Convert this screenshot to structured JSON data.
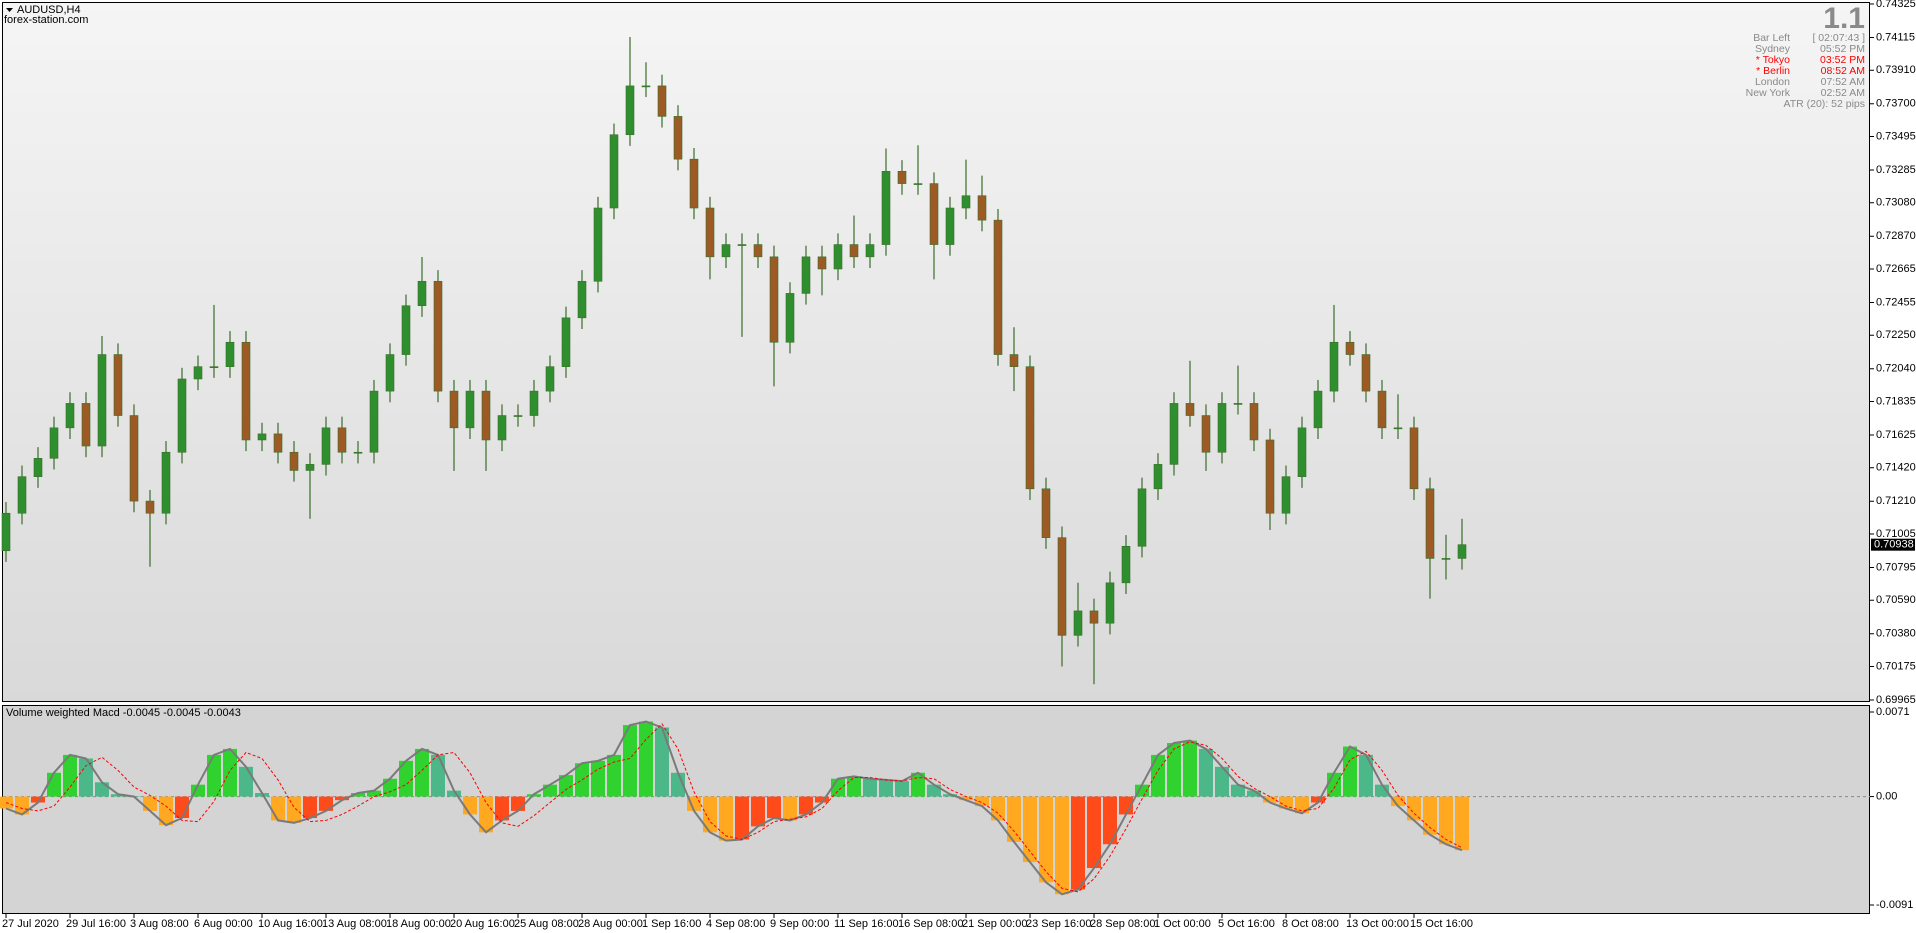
{
  "chart_data": [
    {
      "type": "candlestick",
      "title": "AUDUSD,H4",
      "subtitle": "forex-station.com",
      "categories": [
        "27 Jul 2020",
        null,
        null,
        null,
        "29 Jul 16:00",
        null,
        null,
        null,
        "3 Aug 08:00",
        null,
        null,
        null,
        "6 Aug 00:00",
        null,
        null,
        null,
        "10 Aug 16:00",
        null,
        null,
        null,
        "13 Aug 08:00",
        null,
        null,
        null,
        "18 Aug 00:00",
        null,
        null,
        null,
        "20 Aug 16:00",
        null,
        null,
        null,
        "25 Aug 08:00",
        null,
        null,
        null,
        "28 Aug 00:00",
        null,
        null,
        null,
        "1 Sep 16:00",
        null,
        null,
        null,
        "4 Sep 08:00",
        null,
        null,
        null,
        "9 Sep 00:00",
        null,
        null,
        null,
        "11 Sep 16:00",
        null,
        null,
        null,
        "16 Sep 08:00",
        null,
        null,
        null,
        "21 Sep 00:00",
        null,
        null,
        null,
        "23 Sep 16:00",
        null,
        null,
        null,
        "28 Sep 08:00",
        null,
        null,
        null,
        "1 Oct 00:00",
        null,
        null,
        null,
        "5 Oct 16:00",
        null,
        null,
        null,
        "8 Oct 08:00",
        null,
        null,
        null,
        "13 Oct 00:00",
        null,
        null,
        null,
        "15 Oct 16:00",
        null,
        null,
        null
      ],
      "open": [
        0.709,
        0.71135,
        0.71364,
        0.71479,
        0.7167,
        0.71823,
        0.71556,
        0.72129,
        0.71747,
        0.71211,
        0.71135,
        0.71517,
        0.71976,
        0.72053,
        0.72053,
        0.72206,
        0.71594,
        0.71632,
        0.71517,
        0.71403,
        0.71441,
        0.7167,
        0.71517,
        0.71517,
        0.719,
        0.72129,
        0.72435,
        0.72588,
        0.719,
        0.7167,
        0.719,
        0.71594,
        0.71747,
        0.71747,
        0.719,
        0.72053,
        0.72359,
        0.72588,
        0.73047,
        0.73506,
        0.73812,
        0.73812,
        0.73621,
        0.73353,
        0.73047,
        0.72741,
        0.72818,
        0.72818,
        0.72741,
        0.72206,
        0.72512,
        0.72741,
        0.72665,
        0.72818,
        0.72741,
        0.72818,
        0.73277,
        0.732,
        0.732,
        0.72818,
        0.73047,
        0.73124,
        0.72971,
        0.72129,
        0.72053,
        0.71288,
        0.70982,
        0.7037,
        0.70523,
        0.70446,
        0.70699,
        0.70928,
        0.71288,
        0.71441,
        0.71823,
        0.71747,
        0.71517,
        0.71823,
        0.71823,
        0.71594,
        0.71135,
        0.71364,
        0.7167,
        0.719,
        0.72206,
        0.72129,
        0.719,
        0.7167,
        0.7167,
        0.71288,
        0.70852,
        0.70852
      ],
      "high": [
        0.71205,
        0.71434,
        0.71549,
        0.7174,
        0.71893,
        0.71893,
        0.72245,
        0.72199,
        0.71817,
        0.71281,
        0.71587,
        0.72046,
        0.72123,
        0.7244,
        0.72276,
        0.72276,
        0.71702,
        0.71702,
        0.71587,
        0.71511,
        0.7174,
        0.7174,
        0.71587,
        0.7197,
        0.72199,
        0.72505,
        0.7274,
        0.72658,
        0.7197,
        0.7197,
        0.7197,
        0.71817,
        0.71817,
        0.7197,
        0.72123,
        0.72429,
        0.72658,
        0.73117,
        0.73576,
        0.74118,
        0.7396,
        0.73882,
        0.73691,
        0.73423,
        0.73117,
        0.72888,
        0.72888,
        0.72888,
        0.72811,
        0.72582,
        0.72811,
        0.72811,
        0.72888,
        0.73,
        0.72888,
        0.7342,
        0.73347,
        0.7344,
        0.7327,
        0.73117,
        0.7335,
        0.7325,
        0.73041,
        0.723,
        0.72123,
        0.71358,
        0.71052,
        0.707,
        0.706,
        0.70769,
        0.70998,
        0.71358,
        0.71511,
        0.71893,
        0.7209,
        0.71817,
        0.71893,
        0.7206,
        0.71893,
        0.71664,
        0.71434,
        0.7174,
        0.7197,
        0.7244,
        0.72276,
        0.72199,
        0.7197,
        0.7188,
        0.7174,
        0.71358,
        0.71,
        0.711
      ],
      "low": [
        0.7083,
        0.71065,
        0.71294,
        0.71409,
        0.716,
        0.71486,
        0.71486,
        0.71677,
        0.71141,
        0.708,
        0.71065,
        0.71447,
        0.71906,
        0.71983,
        0.71983,
        0.71524,
        0.71524,
        0.71447,
        0.71333,
        0.711,
        0.71371,
        0.71447,
        0.71447,
        0.71447,
        0.7183,
        0.72059,
        0.72365,
        0.7183,
        0.714,
        0.716,
        0.714,
        0.71524,
        0.71677,
        0.71677,
        0.7183,
        0.71983,
        0.72289,
        0.72518,
        0.72977,
        0.73436,
        0.73742,
        0.73551,
        0.73283,
        0.72977,
        0.726,
        0.72671,
        0.7224,
        0.72671,
        0.7193,
        0.72136,
        0.72442,
        0.725,
        0.72595,
        0.72671,
        0.72671,
        0.72748,
        0.7313,
        0.7313,
        0.726,
        0.72748,
        0.72977,
        0.72901,
        0.72059,
        0.719,
        0.71218,
        0.70912,
        0.70175,
        0.703,
        0.70064,
        0.70376,
        0.70629,
        0.70858,
        0.71218,
        0.71371,
        0.71677,
        0.714,
        0.71447,
        0.71753,
        0.71524,
        0.7103,
        0.71065,
        0.71294,
        0.716,
        0.7183,
        0.72059,
        0.7183,
        0.716,
        0.716,
        0.71218,
        0.706,
        0.7072,
        0.70782
      ],
      "close": [
        0.71135,
        0.71364,
        0.71479,
        0.7167,
        0.71823,
        0.71556,
        0.72129,
        0.71747,
        0.71211,
        0.71135,
        0.71517,
        0.71976,
        0.72053,
        0.72053,
        0.72206,
        0.71594,
        0.71632,
        0.71517,
        0.71403,
        0.71441,
        0.7167,
        0.71517,
        0.71517,
        0.719,
        0.72129,
        0.72435,
        0.72588,
        0.719,
        0.7167,
        0.719,
        0.71594,
        0.71747,
        0.71747,
        0.719,
        0.72053,
        0.72359,
        0.72588,
        0.73047,
        0.73506,
        0.73812,
        0.73812,
        0.73621,
        0.73353,
        0.73047,
        0.72741,
        0.72818,
        0.72818,
        0.72741,
        0.72206,
        0.72512,
        0.72741,
        0.72665,
        0.72818,
        0.72741,
        0.72818,
        0.73277,
        0.732,
        0.732,
        0.72818,
        0.73047,
        0.73124,
        0.72971,
        0.72129,
        0.72053,
        0.71288,
        0.70982,
        0.7037,
        0.70523,
        0.70446,
        0.70699,
        0.70928,
        0.71288,
        0.71441,
        0.71823,
        0.71747,
        0.71517,
        0.71823,
        0.71823,
        0.71594,
        0.71135,
        0.71364,
        0.7167,
        0.719,
        0.72206,
        0.72129,
        0.719,
        0.7167,
        0.7167,
        0.71288,
        0.70852,
        0.70852,
        0.70938
      ],
      "up_color": "#2f8f2f",
      "down_color": "#9c5a24",
      "wick_color": "#3a6e2a",
      "ylim": [
        0.69965,
        0.74325
      ],
      "yticks": [
        0.74325,
        0.74115,
        {
          "value": 0.7391,
          "label": "0.73910"
        },
        {
          "value": 0.737,
          "label": "0.73700"
        },
        0.73495,
        0.73285,
        {
          "value": 0.7308,
          "label": "0.73080"
        },
        {
          "value": 0.7287,
          "label": "0.72870"
        },
        0.72665,
        0.72455,
        {
          "value": 0.7225,
          "label": "0.72250"
        },
        {
          "value": 0.7204,
          "label": "0.72040"
        },
        0.71835,
        0.71625,
        {
          "value": 0.7142,
          "label": "0.71420"
        },
        {
          "value": 0.7121,
          "label": "0.71210"
        },
        0.71005,
        0.70795,
        {
          "value": 0.7059,
          "label": "0.70590"
        },
        {
          "value": 0.7038,
          "label": "0.70380"
        },
        0.70175,
        0.69965
      ],
      "last_price": 0.70938,
      "info": {
        "version": "1.1",
        "rows": [
          {
            "label": "Bar Left",
            "value": "[ 02:07:43 ]",
            "color": "#8a8a8a"
          },
          {
            "label": "Sydney",
            "value": "05:52 PM",
            "color": "#8a8a8a"
          },
          {
            "label": "* Tokyo",
            "value": "03:52 PM",
            "color": "#ff0000"
          },
          {
            "label": "* Berlin",
            "value": "08:52 AM",
            "color": "#ff0000"
          },
          {
            "label": "London",
            "value": "07:52 AM",
            "color": "#8a8a8a"
          },
          {
            "label": "New York",
            "value": "02:52 AM",
            "color": "#8a8a8a"
          }
        ],
        "atr": "ATR (20): 52 pips"
      }
    },
    {
      "type": "bar",
      "title": "Volume weighted Macd -0.0045 -0.0045 -0.0043",
      "series": [
        {
          "values": [
            -0.001,
            -0.0015,
            -0.0005,
            0.002,
            0.0035,
            0.0032,
            0.0012,
            0.0002,
            0,
            -0.0012,
            -0.0024,
            -0.0018,
            0.001,
            0.0035,
            0.004,
            0.0025,
            0.0003,
            -0.002,
            -0.0022,
            -0.0018,
            -0.0012,
            -0.0003,
            0.0003,
            0.0005,
            0.0015,
            0.003,
            0.004,
            0.0035,
            0.0005,
            -0.0015,
            -0.003,
            -0.002,
            -0.0012,
            0.0002,
            0.001,
            0.0018,
            0.0028,
            0.003,
            0.0035,
            0.006,
            0.0063,
            0.0058,
            0.002,
            -0.0012,
            -0.003,
            -0.0037,
            -0.0036,
            -0.0025,
            -0.0018,
            -0.002,
            -0.0015,
            -0.0005,
            0.0015,
            0.0017,
            0.0015,
            0.0014,
            0.0013,
            0.002,
            0.001,
            0.0002,
            -0.0003,
            -0.0008,
            -0.002,
            -0.0038,
            -0.0055,
            -0.0072,
            -0.0082,
            -0.0078,
            -0.006,
            -0.004,
            -0.0015,
            0.001,
            0.0035,
            0.0045,
            0.0047,
            0.004,
            0.0025,
            0.001,
            0.0005,
            -0.0005,
            -0.001,
            -0.0014,
            -0.0005,
            0.002,
            0.0042,
            0.0035,
            0.001,
            -0.0008,
            -0.002,
            -0.0032,
            -0.004,
            -0.0045
          ],
          "colors": {
            "pos_rising": "#2fd22f",
            "pos_falling": "#4cb88a",
            "neg_falling": "#ffa820",
            "neg_rising": "#ff4a1a"
          },
          "outline": "#7a7a7a"
        },
        {
          "color": "#ff0000",
          "values": [
            -0.0005,
            -0.001,
            -0.0012,
            -0.0008,
            0.0008,
            0.0026,
            0.0033,
            0.0022,
            0.0008,
            0.0001,
            -0.0008,
            -0.002,
            -0.0021,
            -0.0004,
            0.0022,
            0.0037,
            0.0032,
            0.0014,
            -0.0009,
            -0.0021,
            -0.002,
            -0.0015,
            -0.0008,
            0.0,
            0.0004,
            0.001,
            0.0022,
            0.0035,
            0.0037,
            0.002,
            -0.0005,
            -0.0022,
            -0.0025,
            -0.0016,
            -0.0005,
            0.0006,
            0.0014,
            0.0023,
            0.0029,
            0.0032,
            0.0048,
            0.0061,
            0.004,
            0.0004,
            -0.0021,
            -0.0033,
            -0.0036,
            -0.003,
            -0.0021,
            -0.0019,
            -0.0017,
            -0.001,
            0.0005,
            0.0016,
            0.0016,
            0.0014,
            0.0013,
            0.0016,
            0.0015,
            0.0006,
            0.0,
            -0.0005,
            -0.0014,
            -0.0029,
            -0.0046,
            -0.0063,
            -0.0077,
            -0.008,
            -0.0069,
            -0.005,
            -0.0027,
            -0.0002,
            0.0022,
            0.004,
            0.0046,
            0.0043,
            0.0032,
            0.0017,
            0.0007,
            0.0,
            -0.0008,
            -0.0012,
            -0.001,
            0.0007,
            0.0031,
            0.0038,
            0.0022,
            0.0001,
            -0.0014,
            -0.0026,
            -0.0036,
            -0.0043
          ]
        }
      ],
      "ylim": [
        -0.0091,
        0.0071
      ],
      "yticks": [
        0.0071,
        {
          "value": 0,
          "label": "0.00"
        },
        -0.0091
      ],
      "level": 0
    }
  ]
}
